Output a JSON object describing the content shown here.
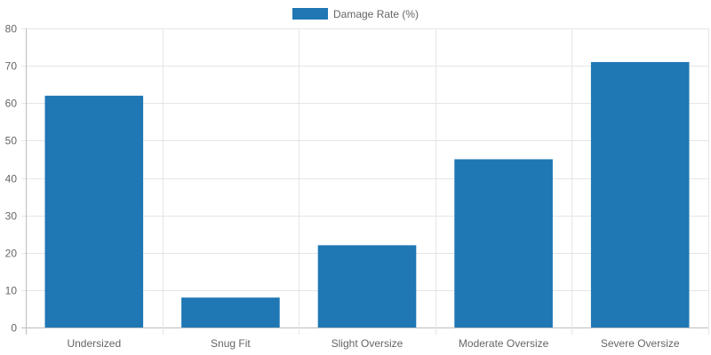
{
  "chart_data": {
    "type": "bar",
    "categories": [
      "Undersized",
      "Snug Fit",
      "Slight Oversize",
      "Moderate Oversize",
      "Severe Oversize"
    ],
    "series": [
      {
        "name": "Damage Rate (%)",
        "values": [
          62,
          8,
          22,
          45,
          71
        ],
        "color": "#1f77b4"
      }
    ],
    "ylim": [
      0,
      80
    ],
    "yticks": [
      0,
      10,
      20,
      30,
      40,
      50,
      60,
      70,
      80
    ],
    "grid": true,
    "legend_position": "top-center",
    "title": "",
    "xlabel": "",
    "ylabel": ""
  }
}
